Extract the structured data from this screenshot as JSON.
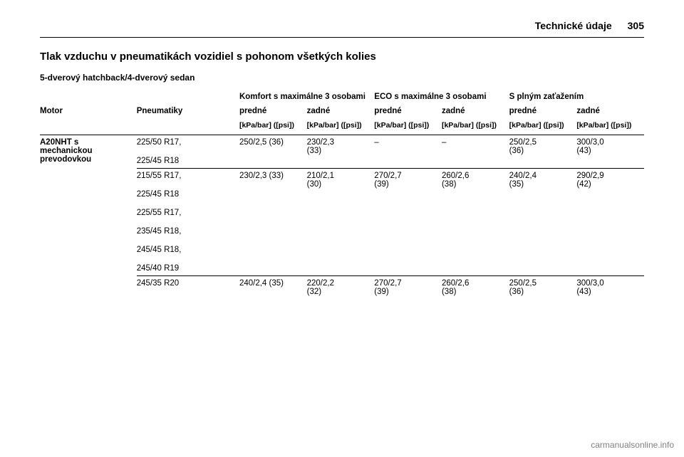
{
  "header": {
    "section": "Technické údaje",
    "page": "305"
  },
  "title": "Tlak vzduchu v pneumatikách vozidiel s pohonom všetkých kolies",
  "subtitle": "5-dverový hatchback/4-dverový sedan",
  "colgroups": {
    "comfort": "Komfort s maximálne 3 osobami",
    "eco": "ECO s maximálne 3 osobami",
    "full": "S plným zaťažením"
  },
  "cols": {
    "motor": "Motor",
    "tyres": "Pneumatiky",
    "front": "predné",
    "rear": "zadné"
  },
  "units": {
    "single": "[kPa/bar] ([psi])",
    "multi": "[kPa/bar]\n([psi])"
  },
  "motor": "A20NHT s mechanickou prevodovkou",
  "rows": [
    {
      "tyres": [
        "225/50 R17,",
        "225/45 R18"
      ],
      "vals": [
        "250/2,5 (36)",
        "230/2,3 (33)",
        "–",
        "–",
        "250/2,5 (36)",
        "300/3,0 (43)"
      ]
    },
    {
      "tyres": [
        "215/55 R17,",
        "225/45 R18",
        "225/55 R17,",
        "235/45 R18,",
        "245/45 R18,",
        "245/40 R19"
      ],
      "vals": [
        "230/2,3 (33)",
        "210/2,1 (30)",
        "270/2,7 (39)",
        "260/2,6 (38)",
        "240/2,4 (35)",
        "290/2,9 (42)"
      ]
    },
    {
      "tyres": [
        "245/35 R20"
      ],
      "vals": [
        "240/2,4 (35)",
        "220/2,2 (32)",
        "270/2,7 (39)",
        "260/2,6 (38)",
        "250/2,5 (36)",
        "300/3,0 (43)"
      ]
    }
  ],
  "footer": "carmanualsonline.info"
}
